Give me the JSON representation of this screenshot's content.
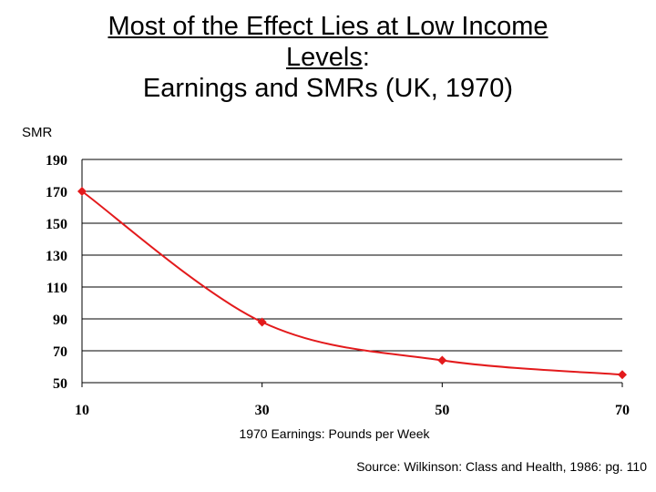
{
  "title": {
    "line1_a": "Most of the Effect Lies at Low Income",
    "line1_b": "Levels",
    "line1_colon": ":",
    "line2": "Earnings and SMRs (UK, 1970)"
  },
  "source": "Source: Wilkinson: Class and Health, 1986:  pg. 110",
  "colors": {
    "series": "#e31a1c",
    "grid": "#000000"
  },
  "chart_data": {
    "type": "line",
    "title": "Most of the Effect Lies at Low Income Levels: Earnings and SMRs (UK, 1970)",
    "ylabel": "SMR",
    "xlabel": "1970 Earnings: Pounds per Week",
    "xlim": [
      10,
      70
    ],
    "ylim": [
      50,
      190
    ],
    "x_ticks": [
      10,
      30,
      50,
      70
    ],
    "y_ticks": [
      190,
      170,
      150,
      130,
      110,
      90,
      70,
      50
    ],
    "grid": "horizontal",
    "smooth": true,
    "series": [
      {
        "x": [
          10,
          30,
          50,
          70
        ],
        "values": [
          170,
          88,
          64,
          55
        ],
        "color": "#e31a1c",
        "marker": "diamond"
      }
    ]
  }
}
